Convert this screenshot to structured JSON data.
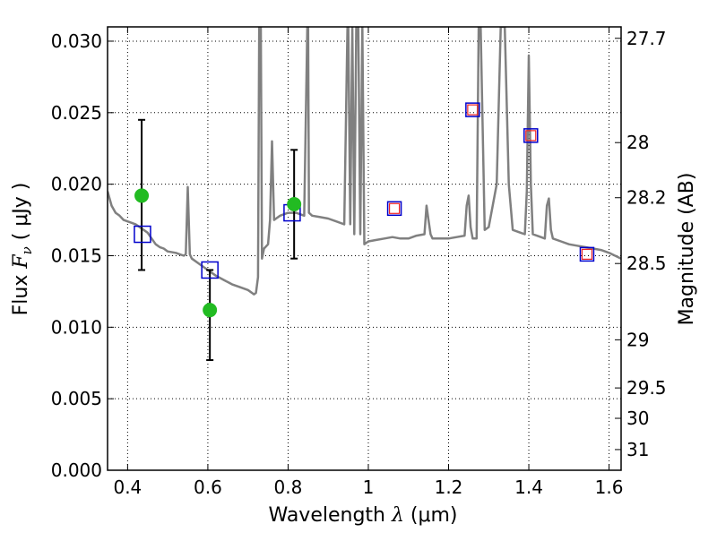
{
  "chart_data": {
    "type": "line",
    "xlabel": {
      "prefix": "Wavelength  ",
      "symbol": "λ",
      "suffix": " (μm)"
    },
    "ylabel": {
      "prefix": "Flux  ",
      "symbol": "F",
      "subscript": "ν",
      "suffix": "  ( μJy )"
    },
    "ylabel_right": "Magnitude (AB)",
    "xlim": [
      0.35,
      1.63
    ],
    "ylim": [
      0.0,
      0.031
    ],
    "x_ticks": [
      {
        "value": 0.4,
        "label": "0.4"
      },
      {
        "value": 0.6,
        "label": "0.6"
      },
      {
        "value": 0.8,
        "label": "0.8"
      },
      {
        "value": 1.0,
        "label": "1"
      },
      {
        "value": 1.2,
        "label": "1.2"
      },
      {
        "value": 1.4,
        "label": "1.4"
      },
      {
        "value": 1.6,
        "label": "1.6"
      }
    ],
    "y_ticks": [
      {
        "value": 0.0,
        "label": "0.000"
      },
      {
        "value": 0.005,
        "label": "0.005"
      },
      {
        "value": 0.01,
        "label": "0.010"
      },
      {
        "value": 0.015,
        "label": "0.015"
      },
      {
        "value": 0.02,
        "label": "0.020"
      },
      {
        "value": 0.025,
        "label": "0.025"
      },
      {
        "value": 0.03,
        "label": "0.030"
      }
    ],
    "y_right_ticks": [
      {
        "value": 27.7,
        "label": "27.7"
      },
      {
        "value": 28.0,
        "label": "28"
      },
      {
        "value": 28.2,
        "label": "28.2"
      },
      {
        "value": 28.5,
        "label": "28.5"
      },
      {
        "value": 29.0,
        "label": "29"
      },
      {
        "value": 29.5,
        "label": "29.5"
      },
      {
        "value": 30.0,
        "label": "30"
      },
      {
        "value": 31.0,
        "label": "31"
      }
    ],
    "grid": true,
    "colors": {
      "model": "#808080",
      "observed": "#22bb22",
      "errorbar": "#000000",
      "model_box": "#0000cc",
      "model_fit_box": "#ee2222"
    },
    "series": [
      {
        "kind": "model_spectrum",
        "x": [
          0.35,
          0.36,
          0.37,
          0.38,
          0.39,
          0.4,
          0.41,
          0.42,
          0.43,
          0.44,
          0.45,
          0.46,
          0.47,
          0.48,
          0.49,
          0.5,
          0.52,
          0.54,
          0.545,
          0.55,
          0.555,
          0.56,
          0.58,
          0.6,
          0.62,
          0.64,
          0.66,
          0.68,
          0.7,
          0.715,
          0.72,
          0.725,
          0.728,
          0.73,
          0.732,
          0.735,
          0.74,
          0.75,
          0.755,
          0.76,
          0.765,
          0.77,
          0.78,
          0.8,
          0.82,
          0.84,
          0.848,
          0.85,
          0.852,
          0.86,
          0.88,
          0.9,
          0.92,
          0.94,
          0.948,
          0.95,
          0.955,
          0.96,
          0.965,
          0.97,
          0.975,
          0.98,
          0.985,
          0.99,
          1.0,
          1.02,
          1.04,
          1.06,
          1.08,
          1.1,
          1.12,
          1.14,
          1.145,
          1.15,
          1.155,
          1.16,
          1.18,
          1.2,
          1.22,
          1.24,
          1.245,
          1.25,
          1.255,
          1.26,
          1.27,
          1.275,
          1.28,
          1.29,
          1.3,
          1.32,
          1.33,
          1.34,
          1.35,
          1.36,
          1.37,
          1.38,
          1.39,
          1.395,
          1.4,
          1.405,
          1.41,
          1.42,
          1.43,
          1.44,
          1.445,
          1.45,
          1.455,
          1.46,
          1.48,
          1.5,
          1.52,
          1.54,
          1.56,
          1.58,
          1.6,
          1.63
        ],
        "y": [
          0.0195,
          0.0185,
          0.018,
          0.0178,
          0.0175,
          0.0174,
          0.0173,
          0.0172,
          0.017,
          0.0168,
          0.0166,
          0.0162,
          0.0158,
          0.0156,
          0.0155,
          0.0153,
          0.0152,
          0.015,
          0.0151,
          0.0198,
          0.0151,
          0.0148,
          0.0144,
          0.014,
          0.0136,
          0.0133,
          0.013,
          0.0128,
          0.0126,
          0.0123,
          0.0124,
          0.0135,
          0.031,
          0.031,
          0.031,
          0.0148,
          0.0155,
          0.0158,
          0.0175,
          0.023,
          0.0175,
          0.0176,
          0.0178,
          0.018,
          0.018,
          0.0178,
          0.031,
          0.031,
          0.018,
          0.0178,
          0.0177,
          0.0176,
          0.0174,
          0.0172,
          0.031,
          0.031,
          0.0172,
          0.031,
          0.0165,
          0.031,
          0.031,
          0.0165,
          0.031,
          0.0158,
          0.016,
          0.0161,
          0.0162,
          0.0163,
          0.0162,
          0.0162,
          0.0164,
          0.0165,
          0.0185,
          0.0175,
          0.0165,
          0.0162,
          0.0162,
          0.0162,
          0.0163,
          0.0164,
          0.0185,
          0.0192,
          0.017,
          0.0162,
          0.0162,
          0.031,
          0.031,
          0.0168,
          0.017,
          0.02,
          0.031,
          0.031,
          0.02,
          0.0168,
          0.0167,
          0.0166,
          0.0165,
          0.0195,
          0.029,
          0.02,
          0.0165,
          0.0164,
          0.0163,
          0.0162,
          0.0185,
          0.019,
          0.0168,
          0.0162,
          0.016,
          0.0158,
          0.0157,
          0.0156,
          0.0155,
          0.0154,
          0.0152,
          0.0148
        ]
      },
      {
        "kind": "observed_points",
        "x": [
          0.435,
          0.605,
          0.815
        ],
        "y": [
          0.0192,
          0.0112,
          0.0186
        ],
        "yerr_low": [
          0.014,
          0.0077,
          0.0148
        ],
        "yerr_high": [
          0.0245,
          0.014,
          0.0224
        ]
      },
      {
        "kind": "model_photometry",
        "x": [
          0.437,
          0.605,
          0.81,
          1.065,
          1.26,
          1.405,
          1.545
        ],
        "y": [
          0.0165,
          0.014,
          0.018,
          0.0183,
          0.0252,
          0.0234,
          0.0151
        ],
        "boxes": [
          "large",
          "large",
          "large",
          "small",
          "small",
          "small",
          "small"
        ],
        "red_inner": [
          false,
          false,
          false,
          true,
          true,
          true,
          true
        ]
      }
    ]
  }
}
